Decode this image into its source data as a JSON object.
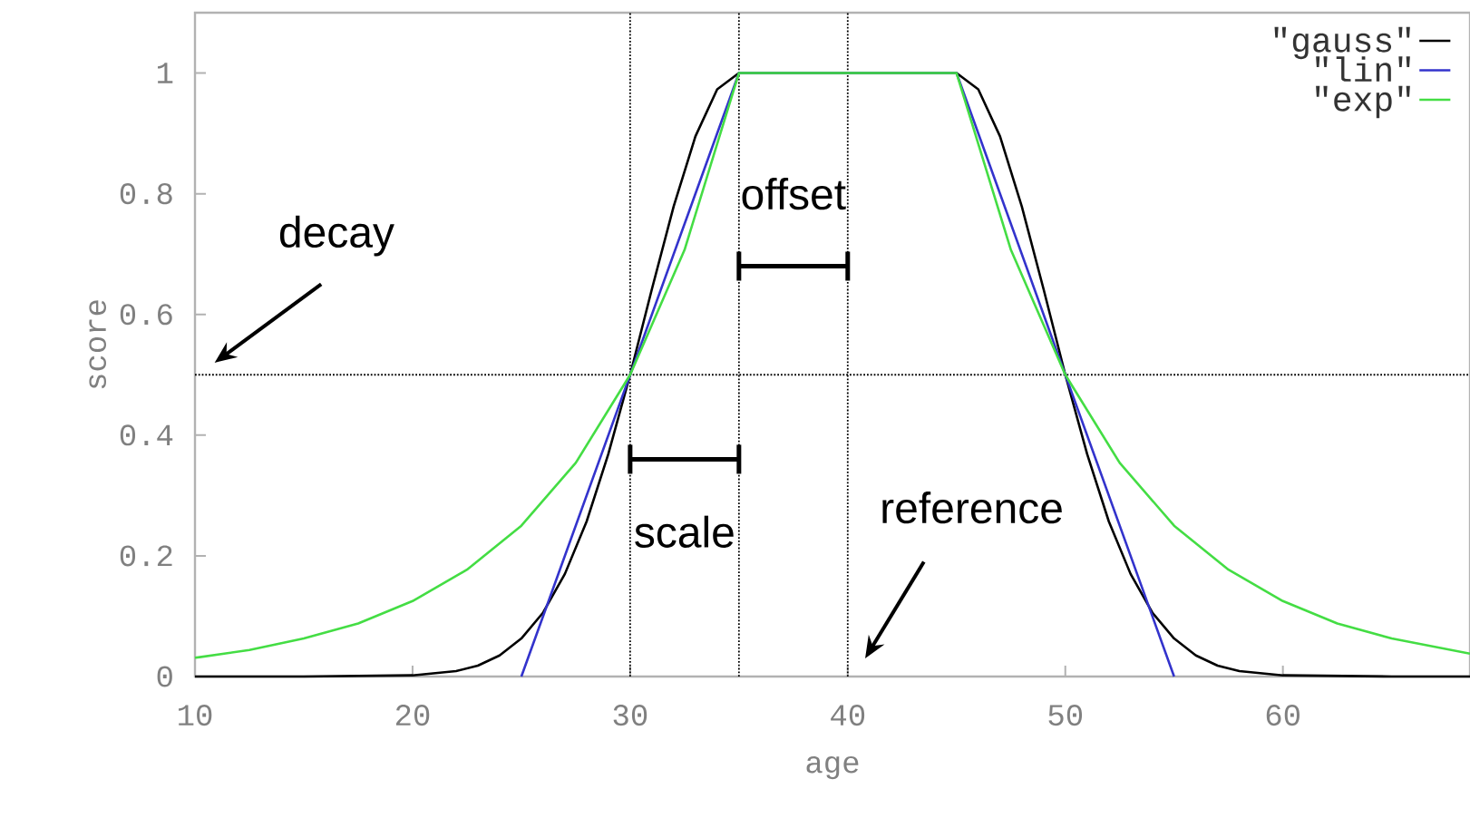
{
  "chart_data": {
    "type": "line",
    "xlabel": "age",
    "ylabel": "score",
    "xlim": [
      10,
      68.6
    ],
    "ylim": [
      0,
      1.1
    ],
    "xticks": [
      10,
      20,
      30,
      40,
      50,
      60
    ],
    "yticks": [
      0,
      0.2,
      0.4,
      0.6,
      0.8,
      1
    ],
    "legend": "top right",
    "line_style": "solid",
    "marker": "none",
    "series": [
      {
        "name": "\"gauss\"",
        "color": "#000000",
        "x": [
          10,
          15,
          20,
          22,
          23,
          24,
          25,
          26,
          27,
          28,
          29,
          30,
          31,
          32,
          33,
          34,
          35,
          45,
          46,
          47,
          48,
          49,
          50,
          51,
          52,
          53,
          54,
          55,
          56,
          57,
          58,
          60,
          65,
          68.6
        ],
        "values": [
          0,
          0,
          0.002,
          0.009,
          0.018,
          0.035,
          0.063,
          0.106,
          0.17,
          0.257,
          0.369,
          0.5,
          0.642,
          0.779,
          0.895,
          0.973,
          1,
          1,
          0.973,
          0.895,
          0.779,
          0.642,
          0.5,
          0.369,
          0.257,
          0.17,
          0.106,
          0.063,
          0.035,
          0.018,
          0.009,
          0.002,
          0,
          0
        ]
      },
      {
        "name": "\"lin\"",
        "color": "#3333cc",
        "x": [
          25,
          35,
          45,
          55
        ],
        "values": [
          0,
          1,
          1,
          0
        ]
      },
      {
        "name": "\"exp\"",
        "color": "#44dd44",
        "x": [
          10,
          12.5,
          15,
          17.5,
          20,
          22.5,
          25,
          27.5,
          30,
          32.5,
          35,
          45,
          47.5,
          50,
          52.5,
          55,
          57.5,
          60,
          62.5,
          65,
          68.6
        ],
        "values": [
          0.031,
          0.044,
          0.063,
          0.088,
          0.125,
          0.177,
          0.25,
          0.354,
          0.5,
          0.707,
          1,
          1,
          0.707,
          0.5,
          0.354,
          0.25,
          0.177,
          0.125,
          0.088,
          0.063,
          0.038
        ]
      },
      {
        "type": "line",
        "color": "#000000",
        "x": [
          35,
          40
        ],
        "values": [
          0.68,
          0.68
        ]
      },
      {
        "type": "line",
        "color": "#000000",
        "x": [
          30,
          35
        ],
        "values": [
          0.36,
          0.36
        ]
      }
    ],
    "ref_lines": [
      {
        "axis": "x",
        "value": 30,
        "line_style": "dotted"
      },
      {
        "axis": "x",
        "value": 35,
        "line_style": "dotted"
      },
      {
        "axis": "x",
        "value": 40,
        "line_style": "dotted"
      },
      {
        "axis": "y",
        "value": 0.5,
        "line_style": "dotted"
      }
    ],
    "annotations": [
      "decay",
      {
        "text": "offset",
        "x": 37.5,
        "y": 0.68
      },
      {
        "text": "scale",
        "x": 32.5,
        "y": 0.36
      },
      "reference"
    ]
  }
}
